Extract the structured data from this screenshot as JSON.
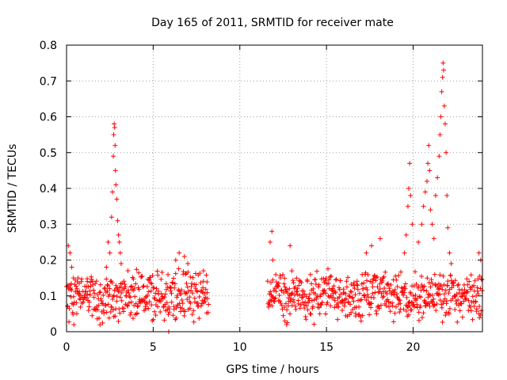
{
  "chart_data": {
    "type": "scatter",
    "title": "Day 165 of 2011, SRMTID for receiver mate",
    "xlabel": "GPS time / hours",
    "ylabel": "SRMTID / TECUs",
    "xlim": [
      0,
      24
    ],
    "ylim": [
      0,
      0.8
    ],
    "xticks": [
      0,
      5,
      10,
      15,
      20
    ],
    "xtick_labels": [
      "0",
      "5",
      "10",
      "15",
      "20"
    ],
    "yticks": [
      0,
      0.1,
      0.2,
      0.3,
      0.4,
      0.5,
      0.6,
      0.7,
      0.8
    ],
    "ytick_labels": [
      "0",
      "0.1",
      "0.2",
      "0.3",
      "0.4",
      "0.5",
      "0.6",
      "0.7",
      "0.8"
    ],
    "grid": true,
    "marker": "+",
    "point_color": "#ff0000",
    "series": [
      {
        "name": "SRMTID",
        "segments": [
          {
            "t0": 0.0,
            "t1": 8.2,
            "baseline": 0.1,
            "spread": 0.06
          },
          {
            "t0": 11.6,
            "t1": 24.0,
            "baseline": 0.1,
            "spread": 0.06
          }
        ],
        "points": [
          {
            "x": 0.1,
            "y": 0.24
          },
          {
            "x": 0.2,
            "y": 0.22
          },
          {
            "x": 0.3,
            "y": 0.18
          },
          {
            "x": 0.4,
            "y": 0.15
          },
          {
            "x": 0.6,
            "y": 0.12
          },
          {
            "x": 1.2,
            "y": 0.14
          },
          {
            "x": 2.3,
            "y": 0.18
          },
          {
            "x": 2.4,
            "y": 0.25
          },
          {
            "x": 2.5,
            "y": 0.22
          },
          {
            "x": 2.6,
            "y": 0.32
          },
          {
            "x": 2.65,
            "y": 0.39
          },
          {
            "x": 2.7,
            "y": 0.49
          },
          {
            "x": 2.72,
            "y": 0.55
          },
          {
            "x": 2.75,
            "y": 0.58
          },
          {
            "x": 2.78,
            "y": 0.57
          },
          {
            "x": 2.8,
            "y": 0.52
          },
          {
            "x": 2.82,
            "y": 0.45
          },
          {
            "x": 2.85,
            "y": 0.41
          },
          {
            "x": 2.9,
            "y": 0.37
          },
          {
            "x": 2.95,
            "y": 0.31
          },
          {
            "x": 3.0,
            "y": 0.27
          },
          {
            "x": 3.05,
            "y": 0.25
          },
          {
            "x": 3.1,
            "y": 0.22
          },
          {
            "x": 3.15,
            "y": 0.19
          },
          {
            "x": 6.3,
            "y": 0.2
          },
          {
            "x": 6.5,
            "y": 0.22
          },
          {
            "x": 6.8,
            "y": 0.21
          },
          {
            "x": 7.0,
            "y": 0.19
          },
          {
            "x": 7.9,
            "y": 0.17
          },
          {
            "x": 5.9,
            "y": 0.0
          },
          {
            "x": 11.75,
            "y": 0.25
          },
          {
            "x": 11.85,
            "y": 0.28
          },
          {
            "x": 11.9,
            "y": 0.2
          },
          {
            "x": 12.6,
            "y": 0.03
          },
          {
            "x": 12.7,
            "y": 0.02
          },
          {
            "x": 12.9,
            "y": 0.24
          },
          {
            "x": 13.0,
            "y": 0.17
          },
          {
            "x": 17.3,
            "y": 0.22
          },
          {
            "x": 17.6,
            "y": 0.24
          },
          {
            "x": 18.1,
            "y": 0.26
          },
          {
            "x": 19.5,
            "y": 0.22
          },
          {
            "x": 19.6,
            "y": 0.27
          },
          {
            "x": 19.7,
            "y": 0.35
          },
          {
            "x": 19.75,
            "y": 0.4
          },
          {
            "x": 19.8,
            "y": 0.47
          },
          {
            "x": 19.85,
            "y": 0.38
          },
          {
            "x": 19.95,
            "y": 0.3
          },
          {
            "x": 20.0,
            "y": 0.0
          },
          {
            "x": 20.3,
            "y": 0.25
          },
          {
            "x": 20.5,
            "y": 0.3
          },
          {
            "x": 20.6,
            "y": 0.35
          },
          {
            "x": 20.7,
            "y": 0.39
          },
          {
            "x": 20.8,
            "y": 0.42
          },
          {
            "x": 20.85,
            "y": 0.47
          },
          {
            "x": 20.9,
            "y": 0.52
          },
          {
            "x": 20.95,
            "y": 0.45
          },
          {
            "x": 21.0,
            "y": 0.34
          },
          {
            "x": 21.1,
            "y": 0.3
          },
          {
            "x": 21.2,
            "y": 0.26
          },
          {
            "x": 21.3,
            "y": 0.38
          },
          {
            "x": 21.4,
            "y": 0.43
          },
          {
            "x": 21.5,
            "y": 0.49
          },
          {
            "x": 21.55,
            "y": 0.55
          },
          {
            "x": 21.6,
            "y": 0.6
          },
          {
            "x": 21.65,
            "y": 0.67
          },
          {
            "x": 21.7,
            "y": 0.71
          },
          {
            "x": 21.73,
            "y": 0.75
          },
          {
            "x": 21.76,
            "y": 0.73
          },
          {
            "x": 21.8,
            "y": 0.63
          },
          {
            "x": 21.85,
            "y": 0.58
          },
          {
            "x": 21.9,
            "y": 0.5
          },
          {
            "x": 21.95,
            "y": 0.38
          },
          {
            "x": 22.0,
            "y": 0.29
          },
          {
            "x": 22.1,
            "y": 0.22
          },
          {
            "x": 22.2,
            "y": 0.19
          },
          {
            "x": 23.8,
            "y": 0.22
          },
          {
            "x": 23.9,
            "y": 0.2
          }
        ]
      }
    ]
  }
}
